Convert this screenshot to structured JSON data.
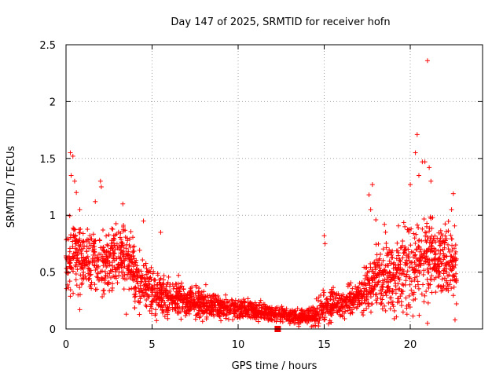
{
  "chart_data": {
    "type": "scatter",
    "title": "Day 147 of 2025, SRMTID for receiver hofn",
    "xlabel": "GPS time / hours",
    "ylabel": "SRMTID / TECUs",
    "xlim": [
      0,
      24.2
    ],
    "ylim": [
      0,
      2.5
    ],
    "xticks": [
      0,
      5,
      10,
      15,
      20
    ],
    "xtick_labels": [
      "0",
      "5",
      "10",
      "15",
      "20"
    ],
    "yticks": [
      0,
      0.5,
      1,
      1.5,
      2,
      2.5
    ],
    "ytick_labels": [
      "0",
      "0.5",
      "1",
      "1.5",
      "2",
      "2.5"
    ],
    "grid": true,
    "marker": "plus",
    "color": "#ff0000",
    "highlight_marker": {
      "x": 12.3,
      "y": 0,
      "shape": "square",
      "color": "#ee0000"
    },
    "series": [
      {
        "name": "SRMTID",
        "envelope": {
          "x": [
            0,
            0.5,
            1,
            2,
            3,
            3.5,
            4,
            5,
            6,
            7,
            8,
            9,
            10,
            11,
            12,
            13,
            14,
            14.6,
            15,
            16,
            17,
            17.5,
            18,
            19,
            20,
            21,
            22,
            22.7
          ],
          "center": [
            0.65,
            0.65,
            0.62,
            0.58,
            0.62,
            0.65,
            0.45,
            0.33,
            0.28,
            0.25,
            0.22,
            0.2,
            0.18,
            0.15,
            0.14,
            0.12,
            0.1,
            0.13,
            0.2,
            0.2,
            0.28,
            0.35,
            0.45,
            0.45,
            0.55,
            0.65,
            0.62,
            0.55
          ],
          "spread": [
            0.22,
            0.25,
            0.22,
            0.2,
            0.22,
            0.2,
            0.18,
            0.15,
            0.12,
            0.1,
            0.09,
            0.08,
            0.07,
            0.06,
            0.05,
            0.05,
            0.05,
            0.08,
            0.1,
            0.08,
            0.1,
            0.15,
            0.2,
            0.25,
            0.3,
            0.3,
            0.25,
            0.2
          ]
        },
        "outliers": [
          {
            "x": 0.05,
            "y": 0.62
          },
          {
            "x": 0.25,
            "y": 1.55
          },
          {
            "x": 0.4,
            "y": 1.52
          },
          {
            "x": 0.3,
            "y": 1.35
          },
          {
            "x": 0.5,
            "y": 1.3
          },
          {
            "x": 0.6,
            "y": 1.2
          },
          {
            "x": 0.8,
            "y": 1.05
          },
          {
            "x": 1.7,
            "y": 1.12
          },
          {
            "x": 2.0,
            "y": 1.3
          },
          {
            "x": 2.05,
            "y": 1.25
          },
          {
            "x": 3.3,
            "y": 1.1
          },
          {
            "x": 4.5,
            "y": 0.95
          },
          {
            "x": 5.5,
            "y": 0.85
          },
          {
            "x": 0.8,
            "y": 0.17
          },
          {
            "x": 3.5,
            "y": 0.13
          },
          {
            "x": 15.0,
            "y": 0.82
          },
          {
            "x": 15.05,
            "y": 0.75
          },
          {
            "x": 17.8,
            "y": 1.27
          },
          {
            "x": 17.6,
            "y": 1.18
          },
          {
            "x": 17.7,
            "y": 1.05
          },
          {
            "x": 18.0,
            "y": 0.96
          },
          {
            "x": 18.5,
            "y": 0.92
          },
          {
            "x": 20.0,
            "y": 1.27
          },
          {
            "x": 20.3,
            "y": 1.55
          },
          {
            "x": 20.4,
            "y": 1.71
          },
          {
            "x": 20.7,
            "y": 1.47
          },
          {
            "x": 20.85,
            "y": 1.47
          },
          {
            "x": 21.0,
            "y": 2.36
          },
          {
            "x": 21.1,
            "y": 1.42
          },
          {
            "x": 21.2,
            "y": 1.3
          },
          {
            "x": 22.5,
            "y": 1.19
          },
          {
            "x": 22.4,
            "y": 1.05
          },
          {
            "x": 21.0,
            "y": 0.05
          },
          {
            "x": 22.6,
            "y": 0.08
          },
          {
            "x": 20.5,
            "y": 1.35
          },
          {
            "x": 21.3,
            "y": 0.98
          }
        ]
      }
    ]
  }
}
